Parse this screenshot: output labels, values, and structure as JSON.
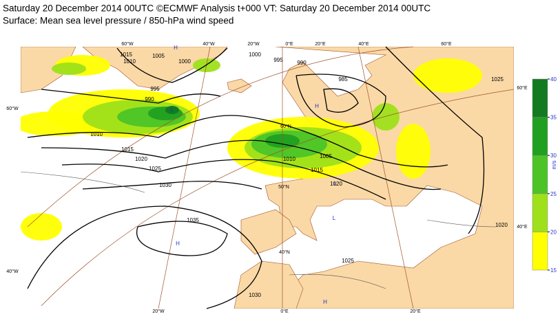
{
  "header": {
    "line1": "Saturday 20 December 2014 00UTC ©ECMWF Analysis t+000 VT: Saturday 20 December 2014 00UTC",
    "line2": "Surface: Mean sea level pressure / 850-hPa wind speed"
  },
  "map": {
    "lon_labels_top": [
      "60°W",
      "40°W",
      "20°W",
      "0°E",
      "20°E",
      "40°E",
      "60°E"
    ],
    "lon_labels_bottom": [
      "20°W",
      "0°E",
      "20°E"
    ],
    "lat_labels_left": [
      "60°W",
      "40°W"
    ],
    "lat_labels_right": [
      "60°E",
      "40°E"
    ],
    "inner_labels": [
      "60°N",
      "50°N",
      "40°N"
    ],
    "isobar_labels": [
      1015,
      1010,
      1005,
      1000,
      995,
      990,
      1010,
      1015,
      1020,
      1025,
      1030,
      1035,
      1030,
      1025,
      1005,
      1010,
      1015,
      1020,
      1020,
      1025,
      985,
      990,
      995,
      1000
    ],
    "pressure_centres": [
      "H",
      "L",
      "L",
      "H",
      "H",
      "L",
      "H"
    ]
  },
  "colorbar": {
    "ticks": [
      15,
      20,
      25,
      30,
      35,
      40
    ],
    "colors": [
      "#ffff00",
      "#9ee01a",
      "#4cc428",
      "#20a020",
      "#127a20"
    ],
    "unit": "m/s"
  }
}
